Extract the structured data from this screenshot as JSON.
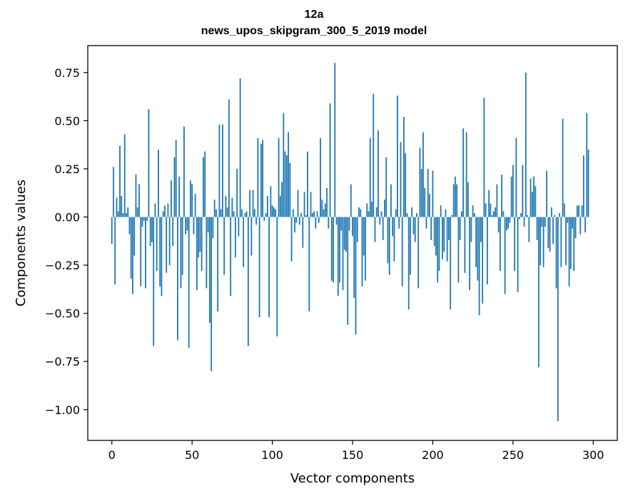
{
  "chart_data": {
    "type": "bar",
    "title": "12a",
    "subtitle": "news_upos_skipgram_300_5_2019 model",
    "xlabel": "Vector components",
    "ylabel": "Components values",
    "xlim": [
      -15,
      315
    ],
    "ylim": [
      -1.16,
      0.89
    ],
    "xticks": [
      0,
      50,
      100,
      150,
      200,
      250,
      300
    ],
    "yticks": [
      0.75,
      0.5,
      0.25,
      0.0,
      -0.25,
      -0.5,
      -0.75,
      -1.0
    ],
    "ytick_labels": [
      "0.75",
      "0.50",
      "0.25",
      "0.00",
      "−0.25",
      "−0.50",
      "−0.75",
      "−1.00"
    ],
    "color": "#1f77b4",
    "values": [
      -0.14,
      0.26,
      -0.35,
      0.1,
      0.03,
      0.37,
      0.11,
      0.02,
      0.43,
      0.02,
      0.05,
      -0.09,
      -0.32,
      -0.4,
      -0.2,
      0.22,
      0.05,
      0.17,
      -0.36,
      -0.05,
      -0.02,
      -0.37,
      -0.02,
      0.56,
      -0.15,
      -0.13,
      -0.67,
      0.07,
      -0.28,
      0.35,
      -0.36,
      -0.41,
      0.03,
      0.06,
      -0.29,
      0.07,
      -0.25,
      0.19,
      -0.15,
      0.31,
      0.4,
      -0.64,
      0.21,
      -0.37,
      -0.3,
      0.47,
      -0.09,
      -0.07,
      -0.68,
      0.19,
      0.17,
      -0.09,
      0.12,
      -0.38,
      -0.21,
      -0.18,
      -0.28,
      0.31,
      0.34,
      -0.37,
      -0.08,
      -0.55,
      -0.8,
      -0.11,
      0.09,
      0.04,
      -0.49,
      0.48,
      0.04,
      0.48,
      -0.3,
      0.11,
      0.05,
      0.61,
      -0.41,
      0.1,
      0.03,
      -0.21,
      0.25,
      -0.1,
      0.72,
      0.04,
      -0.26,
      0.02,
      0.03,
      -0.67,
      0.14,
      -0.2,
      0.14,
      0.04,
      -0.04,
      0.41,
      -0.52,
      0.38,
      0.4,
      -0.02,
      0.02,
      0.11,
      -0.52,
      0.16,
      0.06,
      0.05,
      0.04,
      -0.62,
      0.41,
      0.11,
      0.18,
      0.54,
      0.34,
      0.32,
      0.44,
      0.28,
      -0.23,
      0.04,
      -0.08,
      -0.03,
      0.14,
      -0.04,
      0.02,
      -0.16,
      0.13,
      0.01,
      0.34,
      -0.49,
      0.13,
      0.02,
      0.03,
      -0.06,
      0.03,
      -0.03,
      0.41,
      0.09,
      0.04,
      0.07,
      0.15,
      -0.06,
      0.59,
      -0.33,
      -0.34,
      0.8,
      -0.04,
      -0.41,
      -0.34,
      -0.07,
      -0.38,
      -0.17,
      -0.18,
      -0.56,
      -0.07,
      0.17,
      -0.1,
      -0.42,
      -0.61,
      -0.13,
      0.05,
      0.04,
      -0.36,
      -0.2,
      -0.33,
      0.07,
      0.03,
      0.41,
      0.08,
      0.64,
      -0.13,
      0.05,
      0.45,
      -0.04,
      0.03,
      -0.12,
      0.09,
      0.31,
      -0.24,
      -0.3,
      0.17,
      -0.1,
      -0.23,
      0.04,
      0.63,
      -0.06,
      0.39,
      -0.36,
      0.52,
      0.33,
      0.02,
      -0.48,
      -0.3,
      0.05,
      -0.09,
      -0.13,
      0.02,
      -0.37,
      0.36,
      0.25,
      0.44,
      0.15,
      -0.06,
      0.25,
      0.12,
      -0.12,
      0.24,
      -0.15,
      -0.2,
      -0.34,
      -0.28,
      0.06,
      -0.22,
      -0.18,
      0.04,
      -0.23,
      -0.12,
      -0.48,
      0.01,
      0.17,
      0.21,
      0.17,
      -0.34,
      -0.12,
      0.03,
      0.46,
      -0.29,
      0.44,
      0.18,
      -0.38,
      -0.13,
      0.06,
      0.02,
      -0.26,
      -0.33,
      -0.51,
      -0.13,
      -0.45,
      0.62,
      0.07,
      -0.35,
      0.14,
      0.07,
      0.01,
      0.03,
      0.05,
      0.17,
      -0.08,
      -0.28,
      0.22,
      0.03,
      -0.4,
      -0.07,
      -0.06,
      -0.03,
      0.21,
      0.27,
      -0.28,
      0.41,
      -0.39,
      -0.01,
      0.02,
      0.27,
      -0.05,
      0.75,
      0.01,
      -0.13,
      0.2,
      0.13,
      0.21,
      0.16,
      -0.12,
      -0.78,
      -0.25,
      -0.05,
      -0.26,
      -0.05,
      0.24,
      -0.16,
      -0.18,
      0.05,
      -0.14,
      0.01,
      -0.37,
      -1.06,
      0.02,
      -0.26,
      0.51,
      0.07,
      -0.25,
      -0.03,
      -0.36,
      -0.27,
      -0.06,
      -0.28,
      -0.11,
      0.06,
      0.06,
      -0.09,
      0.06,
      0.32,
      -0.08,
      0.54,
      0.35
    ]
  }
}
